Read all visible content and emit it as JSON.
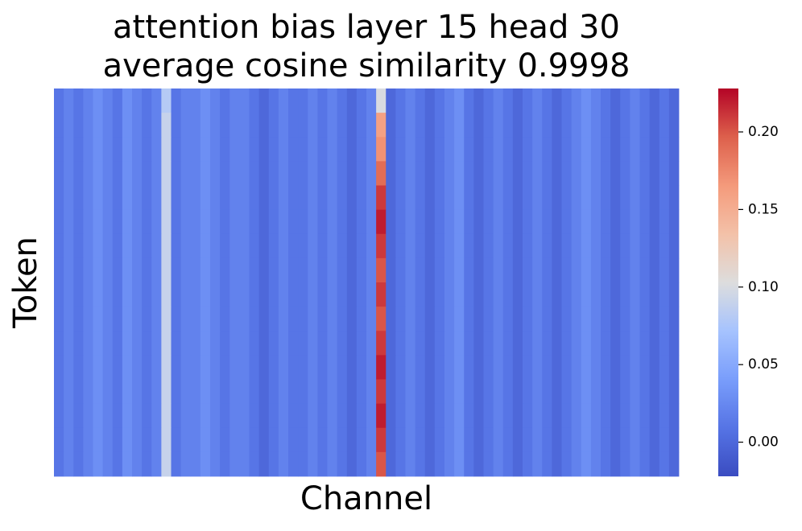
{
  "chart_data": {
    "type": "heatmap",
    "title": [
      "attention bias layer 15 head 30",
      "average cosine similarity 0.9998"
    ],
    "xlabel": "Channel",
    "ylabel": "Token",
    "colormap": "coolwarm",
    "zlim": [
      -0.022,
      0.228
    ],
    "zticks": [
      {
        "value": 0,
        "label": "0.00"
      },
      0.05,
      {
        "value": 0.1,
        "label": "0.10"
      },
      0.15,
      {
        "value": 0.2,
        "label": "0.20"
      }
    ],
    "values": [
      [
        0.01,
        0.02,
        0.01,
        0.02,
        0.03,
        0.02,
        0.01,
        0.03,
        0.02,
        0.01,
        0.02,
        0.08,
        0.01,
        0.02,
        0.02,
        0.03,
        0.02,
        0.01,
        0.02,
        0.02,
        0.01,
        0,
        0.01,
        0.02,
        0.01,
        0.01,
        0.02,
        0.01,
        0.02,
        0.01,
        0,
        0.01,
        0.02,
        0.1,
        0,
        0.01,
        0.02,
        0.01,
        0,
        0.01,
        0.02,
        0.03,
        0.01,
        0,
        0.01,
        0.02,
        0.01,
        0,
        0.01,
        0.02,
        0.01,
        0,
        0.01,
        0.02,
        0.03,
        0.02,
        0.01,
        0,
        0.01,
        0.02,
        0.01,
        0,
        0.01,
        0
      ],
      [
        0.01,
        0.02,
        0.01,
        0.02,
        0.03,
        0.02,
        0.01,
        0.03,
        0.02,
        0.01,
        0.02,
        0.09,
        0.01,
        0.02,
        0.02,
        0.03,
        0.02,
        0.01,
        0.02,
        0.02,
        0.01,
        0,
        0.01,
        0.02,
        0.01,
        0.01,
        0.02,
        0.01,
        0.02,
        0.01,
        0,
        0.01,
        0.02,
        0.16,
        0,
        0.01,
        0.02,
        0.01,
        0,
        0.01,
        0.02,
        0.03,
        0.01,
        0,
        0.01,
        0.02,
        0.01,
        0,
        0.01,
        0.02,
        0.01,
        0,
        0.01,
        0.02,
        0.03,
        0.02,
        0.01,
        0,
        0.01,
        0.02,
        0.01,
        0,
        0.01,
        0
      ],
      [
        0.01,
        0.02,
        0.01,
        0.02,
        0.03,
        0.02,
        0.01,
        0.03,
        0.02,
        0.01,
        0.02,
        0.09,
        0.01,
        0.02,
        0.02,
        0.03,
        0.02,
        0.01,
        0.02,
        0.02,
        0.01,
        0,
        0.01,
        0.02,
        0.01,
        0.01,
        0.02,
        0.01,
        0.02,
        0.01,
        0,
        0.01,
        0.02,
        0.17,
        0,
        0.01,
        0.02,
        0.01,
        0,
        0.01,
        0.02,
        0.03,
        0.01,
        0,
        0.01,
        0.02,
        0.01,
        0,
        0.01,
        0.02,
        0.01,
        0,
        0.01,
        0.02,
        0.03,
        0.02,
        0.01,
        0,
        0.01,
        0.02,
        0.01,
        0,
        0.01,
        0
      ],
      [
        0.01,
        0.02,
        0.01,
        0.02,
        0.03,
        0.02,
        0.01,
        0.03,
        0.02,
        0.01,
        0.02,
        0.09,
        0.01,
        0.02,
        0.02,
        0.03,
        0.02,
        0.01,
        0.02,
        0.02,
        0.01,
        0,
        0.01,
        0.02,
        0.01,
        0.01,
        0.02,
        0.01,
        0.02,
        0.01,
        0,
        0.01,
        0.02,
        0.19,
        0,
        0.01,
        0.02,
        0.01,
        0,
        0.01,
        0.02,
        0.03,
        0.01,
        0,
        0.01,
        0.02,
        0.01,
        0,
        0.01,
        0.02,
        0.01,
        0,
        0.01,
        0.02,
        0.03,
        0.02,
        0.01,
        0,
        0.01,
        0.02,
        0.01,
        0,
        0.01,
        0
      ],
      [
        0.01,
        0.02,
        0.01,
        0.02,
        0.03,
        0.02,
        0.01,
        0.03,
        0.02,
        0.01,
        0.02,
        0.09,
        0.01,
        0.02,
        0.02,
        0.03,
        0.02,
        0.01,
        0.02,
        0.02,
        0.01,
        0,
        0.01,
        0.02,
        0.01,
        0.01,
        0.02,
        0.01,
        0.02,
        0.01,
        0,
        0.01,
        0.02,
        0.21,
        0,
        0.01,
        0.02,
        0.01,
        0,
        0.01,
        0.02,
        0.03,
        0.01,
        0,
        0.01,
        0.02,
        0.01,
        0,
        0.01,
        0.02,
        0.01,
        0,
        0.01,
        0.02,
        0.03,
        0.02,
        0.01,
        0,
        0.01,
        0.02,
        0.01,
        0,
        0.01,
        0
      ],
      [
        0.01,
        0.02,
        0.01,
        0.02,
        0.03,
        0.02,
        0.01,
        0.03,
        0.02,
        0.01,
        0.02,
        0.09,
        0.01,
        0.02,
        0.02,
        0.03,
        0.02,
        0.01,
        0.02,
        0.02,
        0.01,
        0,
        0.01,
        0.02,
        0.01,
        0.01,
        0.02,
        0.01,
        0.02,
        0.01,
        0,
        0.01,
        0.02,
        0.22,
        0,
        0.01,
        0.02,
        0.01,
        0,
        0.01,
        0.02,
        0.03,
        0.01,
        0,
        0.01,
        0.02,
        0.01,
        0,
        0.01,
        0.02,
        0.01,
        0,
        0.01,
        0.02,
        0.03,
        0.02,
        0.01,
        0,
        0.01,
        0.02,
        0.01,
        0,
        0.01,
        0
      ],
      [
        0.01,
        0.02,
        0.01,
        0.02,
        0.03,
        0.02,
        0.01,
        0.03,
        0.02,
        0.01,
        0.02,
        0.09,
        0.01,
        0.02,
        0.02,
        0.03,
        0.02,
        0.01,
        0.02,
        0.02,
        0.01,
        0,
        0.01,
        0.02,
        0.01,
        0.01,
        0.02,
        0.01,
        0.02,
        0.01,
        0,
        0.01,
        0.02,
        0.21,
        0,
        0.01,
        0.02,
        0.01,
        0,
        0.01,
        0.02,
        0.03,
        0.01,
        0,
        0.01,
        0.02,
        0.01,
        0,
        0.01,
        0.02,
        0.01,
        0,
        0.01,
        0.02,
        0.03,
        0.02,
        0.01,
        0,
        0.01,
        0.02,
        0.01,
        0,
        0.01,
        0
      ],
      [
        0.01,
        0.02,
        0.01,
        0.02,
        0.03,
        0.02,
        0.01,
        0.03,
        0.02,
        0.01,
        0.02,
        0.09,
        0.01,
        0.02,
        0.02,
        0.03,
        0.02,
        0.01,
        0.02,
        0.02,
        0.01,
        0,
        0.01,
        0.02,
        0.01,
        0.01,
        0.02,
        0.01,
        0.02,
        0.01,
        0,
        0.01,
        0.02,
        0.2,
        0,
        0.01,
        0.02,
        0.01,
        0,
        0.01,
        0.02,
        0.03,
        0.01,
        0,
        0.01,
        0.02,
        0.01,
        0,
        0.01,
        0.02,
        0.01,
        0,
        0.01,
        0.02,
        0.03,
        0.02,
        0.01,
        0,
        0.01,
        0.02,
        0.01,
        0,
        0.01,
        0
      ],
      [
        0.01,
        0.02,
        0.01,
        0.02,
        0.03,
        0.02,
        0.01,
        0.03,
        0.02,
        0.01,
        0.02,
        0.09,
        0.01,
        0.02,
        0.02,
        0.03,
        0.02,
        0.01,
        0.02,
        0.02,
        0.01,
        0,
        0.01,
        0.02,
        0.01,
        0.01,
        0.02,
        0.01,
        0.02,
        0.01,
        0,
        0.01,
        0.02,
        0.21,
        0,
        0.01,
        0.02,
        0.01,
        0,
        0.01,
        0.02,
        0.03,
        0.01,
        0,
        0.01,
        0.02,
        0.01,
        0,
        0.01,
        0.02,
        0.01,
        0,
        0.01,
        0.02,
        0.03,
        0.02,
        0.01,
        0,
        0.01,
        0.02,
        0.01,
        0,
        0.01,
        0
      ],
      [
        0.01,
        0.02,
        0.01,
        0.02,
        0.03,
        0.02,
        0.01,
        0.03,
        0.02,
        0.01,
        0.02,
        0.09,
        0.01,
        0.02,
        0.02,
        0.03,
        0.02,
        0.01,
        0.02,
        0.02,
        0.01,
        0,
        0.01,
        0.02,
        0.01,
        0.01,
        0.02,
        0.01,
        0.02,
        0.01,
        0,
        0.01,
        0.02,
        0.2,
        0,
        0.01,
        0.02,
        0.01,
        0,
        0.01,
        0.02,
        0.03,
        0.01,
        0,
        0.01,
        0.02,
        0.01,
        0,
        0.01,
        0.02,
        0.01,
        0,
        0.01,
        0.02,
        0.03,
        0.02,
        0.01,
        0,
        0.01,
        0.02,
        0.01,
        0,
        0.01,
        0
      ],
      [
        0.01,
        0.02,
        0.01,
        0.02,
        0.03,
        0.02,
        0.01,
        0.03,
        0.02,
        0.01,
        0.02,
        0.09,
        0.01,
        0.02,
        0.02,
        0.03,
        0.02,
        0.01,
        0.02,
        0.02,
        0.01,
        0,
        0.01,
        0.02,
        0.01,
        0.01,
        0.02,
        0.01,
        0.02,
        0.01,
        0,
        0.01,
        0.02,
        0.21,
        0,
        0.01,
        0.02,
        0.01,
        0,
        0.01,
        0.02,
        0.03,
        0.01,
        0,
        0.01,
        0.02,
        0.01,
        0,
        0.01,
        0.02,
        0.01,
        0,
        0.01,
        0.02,
        0.03,
        0.02,
        0.01,
        0,
        0.01,
        0.02,
        0.01,
        0,
        0.01,
        0
      ],
      [
        0.01,
        0.02,
        0.01,
        0.02,
        0.03,
        0.02,
        0.01,
        0.03,
        0.02,
        0.01,
        0.02,
        0.09,
        0.01,
        0.02,
        0.02,
        0.03,
        0.02,
        0.01,
        0.02,
        0.02,
        0.01,
        0,
        0.01,
        0.02,
        0.01,
        0.01,
        0.02,
        0.01,
        0.02,
        0.01,
        0,
        0.01,
        0.02,
        0.22,
        0,
        0.01,
        0.02,
        0.01,
        0,
        0.01,
        0.02,
        0.03,
        0.01,
        0,
        0.01,
        0.02,
        0.01,
        0,
        0.01,
        0.02,
        0.01,
        0,
        0.01,
        0.02,
        0.03,
        0.02,
        0.01,
        0,
        0.01,
        0.02,
        0.01,
        0,
        0.01,
        0
      ],
      [
        0.01,
        0.02,
        0.01,
        0.02,
        0.03,
        0.02,
        0.01,
        0.03,
        0.02,
        0.01,
        0.02,
        0.09,
        0.01,
        0.02,
        0.02,
        0.03,
        0.02,
        0.01,
        0.02,
        0.02,
        0.01,
        0,
        0.01,
        0.02,
        0.01,
        0.01,
        0.02,
        0.01,
        0.02,
        0.01,
        0,
        0.01,
        0.02,
        0.21,
        0,
        0.01,
        0.02,
        0.01,
        0,
        0.01,
        0.02,
        0.03,
        0.01,
        0,
        0.01,
        0.02,
        0.01,
        0,
        0.01,
        0.02,
        0.01,
        0,
        0.01,
        0.02,
        0.03,
        0.02,
        0.01,
        0,
        0.01,
        0.02,
        0.01,
        0,
        0.01,
        0
      ],
      [
        0.01,
        0.02,
        0.01,
        0.02,
        0.03,
        0.02,
        0.01,
        0.03,
        0.02,
        0.01,
        0.02,
        0.09,
        0.01,
        0.02,
        0.02,
        0.03,
        0.02,
        0.01,
        0.02,
        0.02,
        0.01,
        0,
        0.01,
        0.02,
        0.01,
        0.01,
        0.02,
        0.01,
        0.02,
        0.01,
        0,
        0.01,
        0.02,
        0.22,
        0,
        0.01,
        0.02,
        0.01,
        0,
        0.01,
        0.02,
        0.03,
        0.01,
        0,
        0.01,
        0.02,
        0.01,
        0,
        0.01,
        0.02,
        0.01,
        0,
        0.01,
        0.02,
        0.03,
        0.02,
        0.01,
        0,
        0.01,
        0.02,
        0.01,
        0,
        0.01,
        0
      ],
      [
        0.01,
        0.02,
        0.01,
        0.02,
        0.03,
        0.02,
        0.01,
        0.03,
        0.02,
        0.01,
        0.02,
        0.09,
        0.01,
        0.02,
        0.02,
        0.03,
        0.02,
        0.01,
        0.02,
        0.02,
        0.01,
        0,
        0.01,
        0.02,
        0.01,
        0.01,
        0.02,
        0.01,
        0.02,
        0.01,
        0,
        0.01,
        0.02,
        0.21,
        0,
        0.01,
        0.02,
        0.01,
        0,
        0.01,
        0.02,
        0.03,
        0.01,
        0,
        0.01,
        0.02,
        0.01,
        0,
        0.01,
        0.02,
        0.01,
        0,
        0.01,
        0.02,
        0.03,
        0.02,
        0.01,
        0,
        0.01,
        0.02,
        0.01,
        0,
        0.01,
        0
      ],
      [
        0.01,
        0.02,
        0.01,
        0.02,
        0.03,
        0.02,
        0.01,
        0.03,
        0.02,
        0.01,
        0.02,
        0.09,
        0.01,
        0.02,
        0.02,
        0.03,
        0.02,
        0.01,
        0.02,
        0.02,
        0.01,
        0,
        0.01,
        0.02,
        0.01,
        0.01,
        0.02,
        0.01,
        0.02,
        0.01,
        0,
        0.01,
        0.02,
        0.2,
        0,
        0.01,
        0.02,
        0.01,
        0,
        0.01,
        0.02,
        0.03,
        0.01,
        0,
        0.01,
        0.02,
        0.01,
        0,
        0.01,
        0.02,
        0.01,
        0,
        0.01,
        0.02,
        0.03,
        0.02,
        0.01,
        0,
        0.01,
        0.02,
        0.01,
        0,
        0.01,
        0
      ]
    ]
  }
}
